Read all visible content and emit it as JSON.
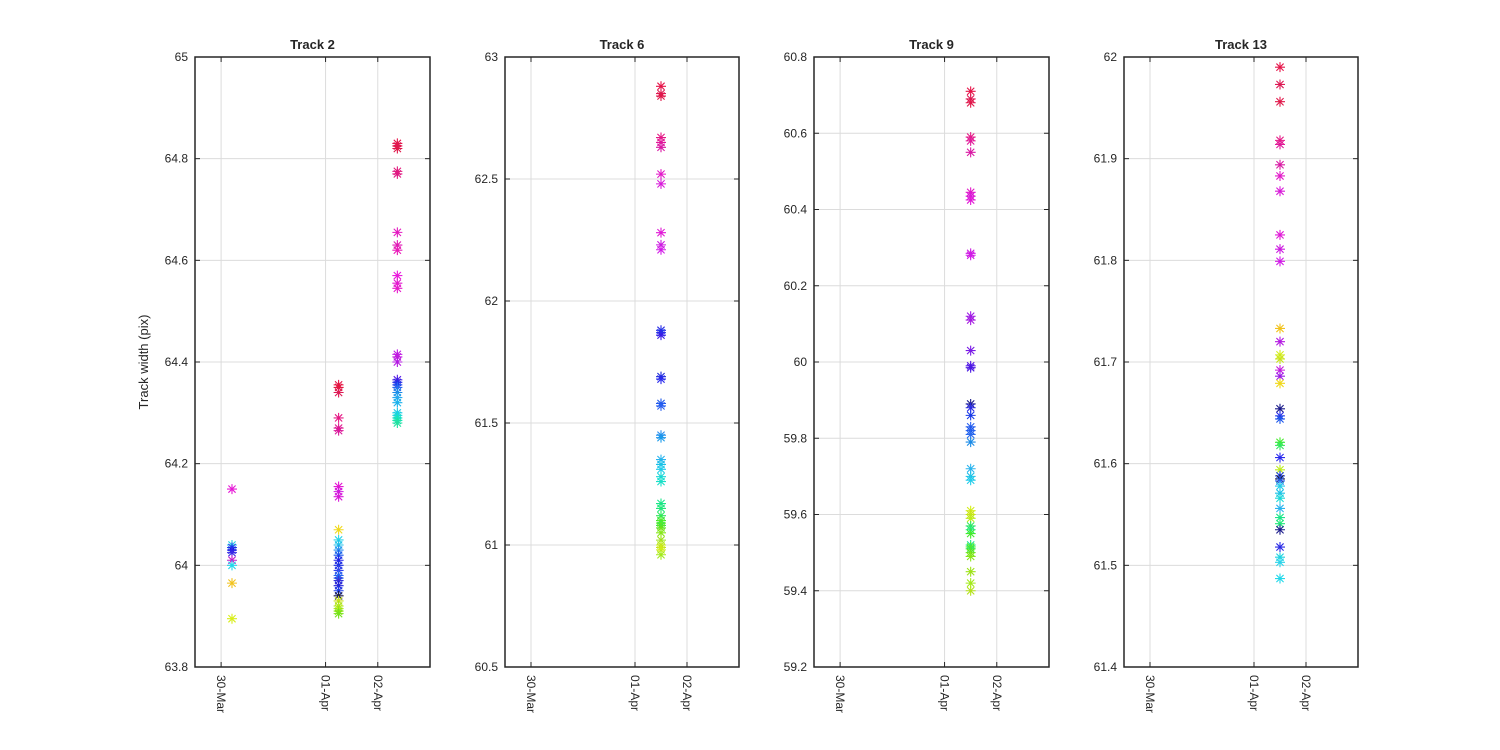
{
  "chart_data": [
    {
      "type": "scatter",
      "title": "Track 2",
      "ylabel": "Track width (pix)",
      "ylim": [
        63.8,
        65
      ],
      "yticks": [
        "63.8",
        "64",
        "64.2",
        "64.4",
        "64.6",
        "64.8",
        "65"
      ],
      "xlim": [
        "29-Mar 12:00",
        "03-Apr 00:00"
      ],
      "xticks": [
        {
          "label": "30-Mar",
          "date": "2015-03-30"
        },
        {
          "label": "01-Apr",
          "date": "2015-04-01"
        },
        {
          "label": "02-Apr",
          "date": "2015-04-02"
        }
      ],
      "grid": true,
      "groups": [
        {
          "x": "30-Mar 05:00",
          "y": [
            64.15,
            64.04,
            64.035,
            64.03,
            64.025,
            64.01,
            64.0,
            63.965,
            63.895
          ],
          "colors": [
            "#e619d6",
            "#22d4e0",
            "#2244ee",
            "#1a1ae6",
            "#3a2ae6",
            "#c41acb",
            "#22d8ea",
            "#f2c21c",
            "#d8ee1a"
          ]
        },
        {
          "x": "01-Apr 06:00",
          "y": [
            64.355,
            64.35,
            64.34,
            64.29,
            64.27,
            64.265,
            64.155,
            64.145,
            64.135,
            64.07,
            64.05,
            64.04,
            64.03,
            64.02,
            64.01,
            64.0,
            63.99,
            63.98,
            63.975,
            63.97,
            63.96,
            63.95,
            63.94,
            63.93,
            63.92,
            63.915,
            63.91,
            63.905
          ],
          "colors": [
            "#e6154a",
            "#e3163e",
            "#dd1a55",
            "#e51985",
            "#e01a8e",
            "#d91a9c",
            "#e419d3",
            "#cf1ae0",
            "#d81ad9",
            "#f0d81a",
            "#2ad4ea",
            "#20bfe8",
            "#2a8cf0",
            "#1a56ea",
            "#2020e8",
            "#1a2fe0",
            "#3344ee",
            "#2a6aee",
            "#2060f0",
            "#3a32d8",
            "#2222d6",
            "#1a3ae8",
            "#1a1a40",
            "#c8e21a",
            "#a2e21a",
            "#bcec1a",
            "#8ee41a",
            "#74e21a"
          ]
        },
        {
          "x": "02-Apr 09:00",
          "y": [
            64.83,
            64.825,
            64.82,
            64.775,
            64.77,
            64.655,
            64.63,
            64.62,
            64.57,
            64.555,
            64.545,
            64.415,
            64.41,
            64.4,
            64.365,
            64.36,
            64.355,
            64.35,
            64.34,
            64.33,
            64.32,
            64.3,
            64.295,
            64.29,
            64.285,
            64.28
          ],
          "colors": [
            "#e6154a",
            "#dd1a55",
            "#e0184a",
            "#e11a7c",
            "#df1a84",
            "#e419c0",
            "#df1ab4",
            "#e91ab8",
            "#ea1adc",
            "#e21ad0",
            "#e61acb",
            "#be1ae6",
            "#c21ade",
            "#b31ae2",
            "#5a1ae6",
            "#2a2ae6",
            "#1a3ce8",
            "#2a6aee",
            "#1a8ae6",
            "#2aa8ee",
            "#1ab2ec",
            "#1ac8e8",
            "#1ad4e0",
            "#1ae0c8",
            "#1ae6b0",
            "#22e0a0"
          ]
        }
      ]
    },
    {
      "type": "scatter",
      "title": "Track 6",
      "ylabel": "",
      "ylim": [
        60.5,
        63
      ],
      "yticks": [
        "60.5",
        "61",
        "61.5",
        "62",
        "62.5",
        "63"
      ],
      "xlim": [
        "29-Mar 12:00",
        "03-Apr 00:00"
      ],
      "xticks": [
        {
          "label": "30-Mar",
          "date": "2015-03-30"
        },
        {
          "label": "01-Apr",
          "date": "2015-04-01"
        },
        {
          "label": "02-Apr",
          "date": "2015-04-02"
        }
      ],
      "grid": true,
      "groups": [
        {
          "x": "01-Apr 12:00",
          "y": [
            62.88,
            62.85,
            62.84,
            62.67,
            62.65,
            62.63,
            62.52,
            62.48,
            62.28,
            62.23,
            62.21,
            61.88,
            61.87,
            61.86,
            61.69,
            61.68,
            61.58,
            61.57,
            61.45,
            61.44,
            61.35,
            61.33,
            61.31,
            61.28,
            61.26,
            61.17,
            61.15,
            61.12,
            61.1,
            61.09,
            61.08,
            61.07,
            61.05,
            61.02,
            61.0,
            60.99,
            60.98,
            60.96
          ],
          "colors": [
            "#e6154a",
            "#dd1a55",
            "#e0184a",
            "#e51985",
            "#e0189a",
            "#d91aa4",
            "#e219c8",
            "#d81ad9",
            "#e019d6",
            "#cc1ae0",
            "#d21ae8",
            "#2a2ae6",
            "#1a3ce8",
            "#3a1ae6",
            "#1a2ad6",
            "#2a2aee",
            "#1a56ea",
            "#2a60f0",
            "#2a8cf0",
            "#1a9aea",
            "#2ab4ee",
            "#1ac0e6",
            "#22ccea",
            "#1ad8d8",
            "#1ae0c8",
            "#1ae68a",
            "#22e87a",
            "#30e860",
            "#44ea2a",
            "#5aee2a",
            "#3ae84a",
            "#66e21a",
            "#88e81a",
            "#9ee21a",
            "#bcec1a",
            "#c8e21a",
            "#d4ee1a",
            "#a2ea1a"
          ]
        }
      ]
    },
    {
      "type": "scatter",
      "title": "Track 9",
      "ylabel": "",
      "ylim": [
        59.2,
        60.8
      ],
      "yticks": [
        "59.2",
        "59.4",
        "59.6",
        "59.8",
        "60",
        "60.2",
        "60.4",
        "60.6",
        "60.8"
      ],
      "xlim": [
        "29-Mar 12:00",
        "03-Apr 00:00"
      ],
      "xticks": [
        {
          "label": "30-Mar",
          "date": "2015-03-30"
        },
        {
          "label": "01-Apr",
          "date": "2015-04-01"
        },
        {
          "label": "02-Apr",
          "date": "2015-04-02"
        }
      ],
      "grid": true,
      "groups": [
        {
          "x": "01-Apr 12:00",
          "y": [
            60.71,
            60.69,
            60.68,
            60.59,
            60.58,
            60.55,
            60.445,
            60.435,
            60.425,
            60.285,
            60.28,
            60.12,
            60.11,
            60.03,
            59.99,
            59.985,
            59.89,
            59.88,
            59.86,
            59.83,
            59.82,
            59.81,
            59.79,
            59.72,
            59.7,
            59.69,
            59.61,
            59.6,
            59.59,
            59.57,
            59.56,
            59.55,
            59.52,
            59.515,
            59.51,
            59.5,
            59.49,
            59.45,
            59.42,
            59.4
          ],
          "colors": [
            "#e6154a",
            "#dd1a55",
            "#e0184a",
            "#e51985",
            "#e0189a",
            "#d91aa4",
            "#e219c8",
            "#d81ad9",
            "#e019d6",
            "#cc1ae0",
            "#d21ae8",
            "#9e1ae6",
            "#a41ae0",
            "#7a1ae6",
            "#5a1ae6",
            "#4a1ae2",
            "#1a1a8a",
            "#2a2ae6",
            "#1a3ce8",
            "#2a60f0",
            "#1a56ea",
            "#2a6aee",
            "#1a8ae6",
            "#2ab4ee",
            "#1ac0e6",
            "#22ccea",
            "#d4ee1a",
            "#c8e21a",
            "#bcec1a",
            "#30e860",
            "#22e87a",
            "#44ea2a",
            "#1ae68a",
            "#5aee2a",
            "#3ae84a",
            "#66e21a",
            "#88e81a",
            "#9ee21a",
            "#a2ea1a",
            "#b4e21a"
          ]
        }
      ]
    },
    {
      "type": "scatter",
      "title": "Track 13",
      "ylabel": "",
      "ylim": [
        61.4,
        62
      ],
      "yticks": [
        "61.4",
        "61.5",
        "61.6",
        "61.7",
        "61.8",
        "61.9",
        "62"
      ],
      "xlim": [
        "29-Mar 12:00",
        "03-Apr 00:00"
      ],
      "xticks": [
        {
          "label": "30-Mar",
          "date": "2015-03-30"
        },
        {
          "label": "01-Apr",
          "date": "2015-04-01"
        },
        {
          "label": "02-Apr",
          "date": "2015-04-02"
        }
      ],
      "grid": true,
      "groups": [
        {
          "x": "01-Apr 12:00",
          "y": [
            61.99,
            61.973,
            61.956,
            61.918,
            61.914,
            61.894,
            61.883,
            61.868,
            61.825,
            61.811,
            61.799,
            61.733,
            61.72,
            61.707,
            61.703,
            61.692,
            61.686,
            61.679,
            61.654,
            61.647,
            61.644,
            61.621,
            61.618,
            61.606,
            61.594,
            61.588,
            61.585,
            61.583,
            61.578,
            61.571,
            61.566,
            61.556,
            61.547,
            61.541,
            61.535,
            61.518,
            61.508,
            61.503,
            61.487
          ],
          "colors": [
            "#e6154a",
            "#dd1a55",
            "#e0184a",
            "#e51985",
            "#e0189a",
            "#d91aa4",
            "#e219c8",
            "#d81ad9",
            "#e019d6",
            "#cc1ae0",
            "#d21ae8",
            "#f2c21c",
            "#b31ae2",
            "#d4ee1a",
            "#c8e21a",
            "#c21ade",
            "#9e1ae6",
            "#f0d81a",
            "#1a1a8a",
            "#2a2ae6",
            "#1a56ea",
            "#44ea2a",
            "#30e860",
            "#2a2aee",
            "#bcec1a",
            "#1a3ce8",
            "#1a1a40",
            "#2a60f0",
            "#22ccea",
            "#1ac0e6",
            "#1ad8d8",
            "#2ab4ee",
            "#1ae68a",
            "#22e87a",
            "#1a1a8a",
            "#2a2ae6",
            "#1ad4e0",
            "#2ad4ea",
            "#22d8ea"
          ]
        }
      ]
    }
  ]
}
